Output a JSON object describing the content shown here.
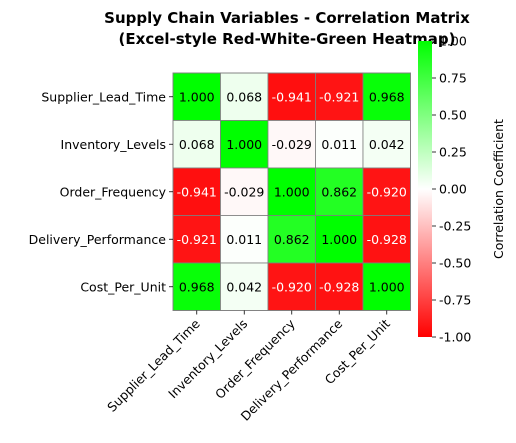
{
  "chart_data": {
    "type": "heatmap",
    "title": "Supply Chain Variables - Correlation Matrix",
    "subtitle": "(Excel-style Red-White-Green Heatmap)",
    "variables": [
      "Supplier_Lead_Time",
      "Inventory_Levels",
      "Order_Frequency",
      "Delivery_Performance",
      "Cost_Per_Unit"
    ],
    "values": [
      [
        1.0,
        0.068,
        -0.941,
        -0.921,
        0.968
      ],
      [
        0.068,
        1.0,
        -0.029,
        0.011,
        0.042
      ],
      [
        -0.941,
        -0.029,
        1.0,
        0.862,
        -0.92
      ],
      [
        -0.921,
        0.011,
        0.862,
        1.0,
        -0.928
      ],
      [
        0.968,
        0.042,
        -0.92,
        -0.928,
        1.0
      ]
    ],
    "value_format": "3 decimals",
    "colormap": {
      "low": "#ff0000",
      "mid": "#ffffff",
      "high": "#00ff00"
    },
    "vmin": -1.0,
    "vmax": 1.0,
    "colorbar": {
      "label": "Correlation Coefficient",
      "ticks": [
        "-1.00",
        "-0.75",
        "-0.50",
        "-0.25",
        "0.00",
        "0.25",
        "0.50",
        "0.75",
        "1.00"
      ]
    },
    "grid": true
  }
}
